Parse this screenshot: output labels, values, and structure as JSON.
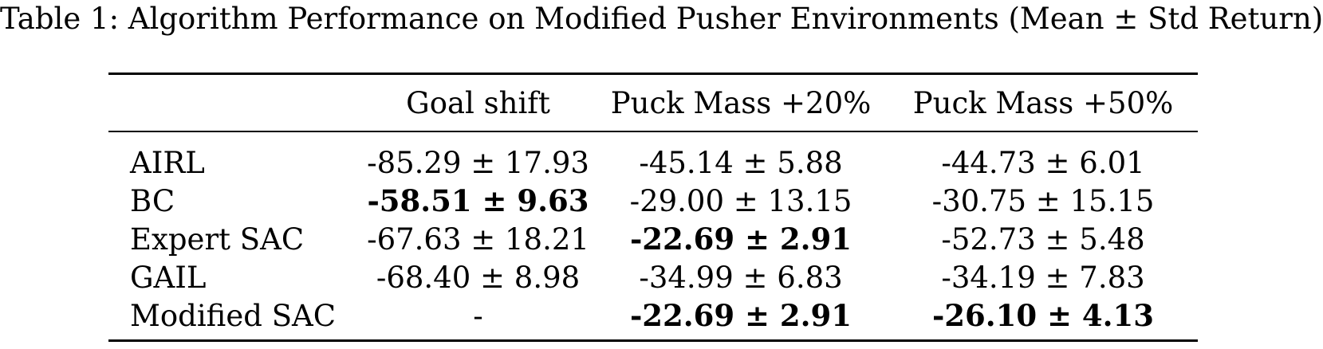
{
  "caption": "Table 1: Algorithm Performance on Modified Pusher Environments (Mean ± Std Return)",
  "columns": [
    "",
    "Goal shift",
    "Puck Mass +20%",
    "Puck Mass +50%"
  ],
  "rows": [
    {
      "name": "AIRL",
      "cells": [
        {
          "text": "-85.29 ± 17.93",
          "bold": false
        },
        {
          "text": "-45.14 ± 5.88",
          "bold": false
        },
        {
          "text": "-44.73 ± 6.01",
          "bold": false
        }
      ]
    },
    {
      "name": "BC",
      "cells": [
        {
          "text": "-58.51 ± 9.63",
          "bold": true
        },
        {
          "text": "-29.00 ± 13.15",
          "bold": false
        },
        {
          "text": "-30.75 ± 15.15",
          "bold": false
        }
      ]
    },
    {
      "name": "Expert SAC",
      "cells": [
        {
          "text": "-67.63 ± 18.21",
          "bold": false
        },
        {
          "text": "-22.69 ± 2.91",
          "bold": true
        },
        {
          "text": "-52.73 ± 5.48",
          "bold": false
        }
      ]
    },
    {
      "name": "GAIL",
      "cells": [
        {
          "text": "-68.40 ± 8.98",
          "bold": false
        },
        {
          "text": "-34.99 ± 6.83",
          "bold": false
        },
        {
          "text": "-34.19 ± 7.83",
          "bold": false
        }
      ]
    },
    {
      "name": "Modified SAC",
      "cells": [
        {
          "text": "-",
          "bold": false
        },
        {
          "text": "-22.69 ± 2.91",
          "bold": true
        },
        {
          "text": "-26.10 ± 4.13",
          "bold": true
        }
      ]
    }
  ]
}
